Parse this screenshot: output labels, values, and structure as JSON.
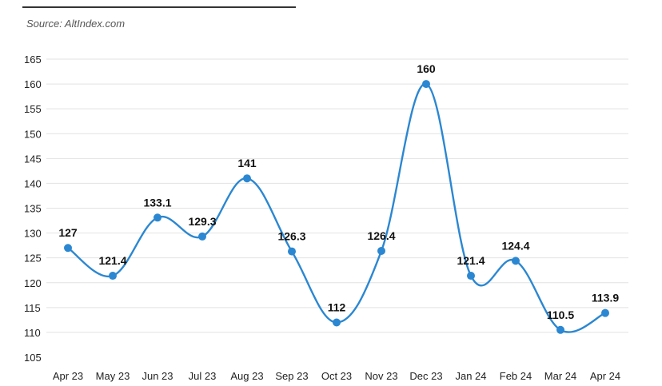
{
  "source_label": "Source: AltIndex.com",
  "colors": {
    "line": "#2b87d1",
    "grid": "#e2e2e2",
    "text": "#222222"
  },
  "chart_data": {
    "type": "line",
    "title": "",
    "xlabel": "",
    "ylabel": "",
    "ylim": [
      105,
      165
    ],
    "yticks": [
      105,
      110,
      115,
      120,
      125,
      130,
      135,
      140,
      145,
      150,
      155,
      160,
      165
    ],
    "grid": true,
    "categories": [
      "Apr 23",
      "May 23",
      "Jun 23",
      "Jul 23",
      "Aug 23",
      "Sep 23",
      "Oct 23",
      "Nov 23",
      "Dec 23",
      "Jan 24",
      "Feb 24",
      "Mar 24",
      "Apr 24"
    ],
    "series": [
      {
        "values": [
          127,
          121.4,
          133.1,
          129.3,
          141,
          126.3,
          112,
          126.4,
          160,
          121.4,
          124.4,
          110.5,
          113.9
        ]
      }
    ]
  }
}
